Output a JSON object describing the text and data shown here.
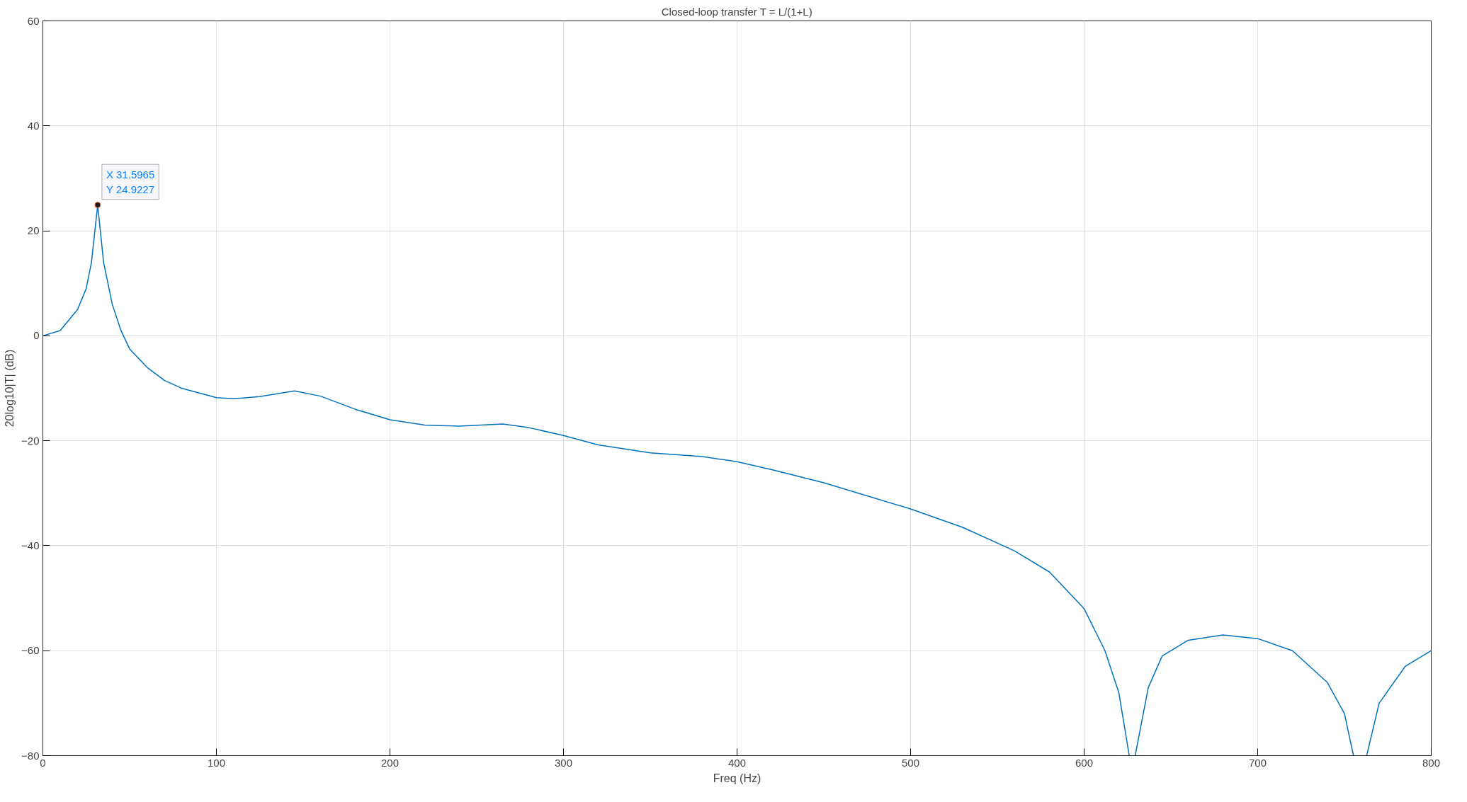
{
  "chart_data": {
    "type": "line",
    "title": "Closed-loop transfer T = L/(1+L)",
    "xlabel": "Freq (Hz)",
    "ylabel": "20log10|T| (dB)",
    "x": [
      0,
      10,
      20,
      25,
      28,
      31.5965,
      35,
      40,
      45,
      50,
      60,
      70,
      80,
      100,
      110,
      125,
      145,
      160,
      180,
      200,
      220,
      240,
      265,
      280,
      300,
      320,
      350,
      380,
      400,
      420,
      450,
      500,
      530,
      560,
      580,
      600,
      612,
      620,
      626,
      627.7,
      629.4,
      637,
      645,
      660,
      680,
      700,
      720,
      740,
      750,
      755.2,
      759,
      762.8,
      770,
      785,
      800
    ],
    "series": [
      {
        "color": "#0072bd",
        "values": [
          0,
          1,
          5,
          9,
          14,
          24.9227,
          14,
          6,
          1,
          -2.5,
          -6,
          -8.5,
          -10,
          -11.8,
          -12,
          -11.6,
          -10.5,
          -11.5,
          -14,
          -16,
          -17,
          -17.2,
          -16.8,
          -17.5,
          -19,
          -20.8,
          -22.3,
          -23,
          -24,
          -25.5,
          -28,
          -33,
          -36.5,
          -41,
          -45,
          -52,
          -60,
          -68,
          -80,
          null,
          -80,
          -67,
          -61,
          -58,
          -57,
          -57.7,
          -60,
          -66,
          -72,
          -80,
          null,
          -80,
          -70,
          -63,
          -60
        ]
      }
    ],
    "xlim": [
      0,
      800
    ],
    "ylim": [
      -80,
      60
    ],
    "xticks": [
      0,
      100,
      200,
      300,
      400,
      500,
      600,
      700,
      800
    ],
    "yticks": [
      -80,
      -60,
      -40,
      -20,
      0,
      20,
      40,
      60
    ],
    "grid": true,
    "line_style": "solid",
    "annotations": [
      {
        "text": "X 31.5965\nY 24.9227",
        "x": 31.5965,
        "y": 24.9227
      }
    ]
  }
}
